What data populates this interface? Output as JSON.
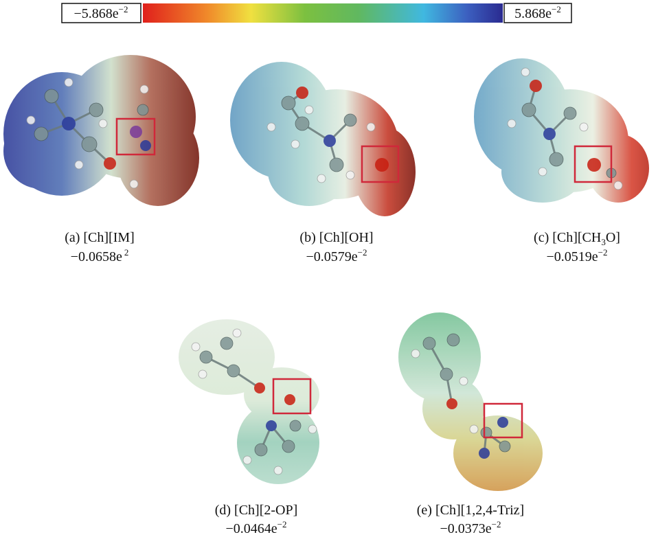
{
  "colorbar": {
    "min": {
      "base": "−5.868e",
      "exponent": "−2"
    },
    "max": {
      "base": "5.868e",
      "exponent": "−2"
    }
  },
  "panels": [
    {
      "label": {
        "text": "(a) [Ch][IM]"
      },
      "value": {
        "base": "−0.0658e",
        "exponent": "2"
      }
    },
    {
      "label": {
        "text": "(b) [Ch][OH]"
      },
      "value": {
        "base": "−0.0579e",
        "exponent": "−2"
      }
    },
    {
      "label": {
        "text": "(c) [Ch][CH",
        "sub": "3",
        "after": "O]"
      },
      "value": {
        "base": "−0.0519e",
        "exponent": "−2"
      }
    },
    {
      "label": {
        "text": "(d) [Ch][2-OP]"
      },
      "value": {
        "base": "−0.0464e",
        "exponent": "−2"
      }
    },
    {
      "label": {
        "text": "(e) [Ch][1,2,4-Triz]"
      },
      "value": {
        "base": "−0.0373e",
        "exponent": "−2"
      }
    }
  ]
}
